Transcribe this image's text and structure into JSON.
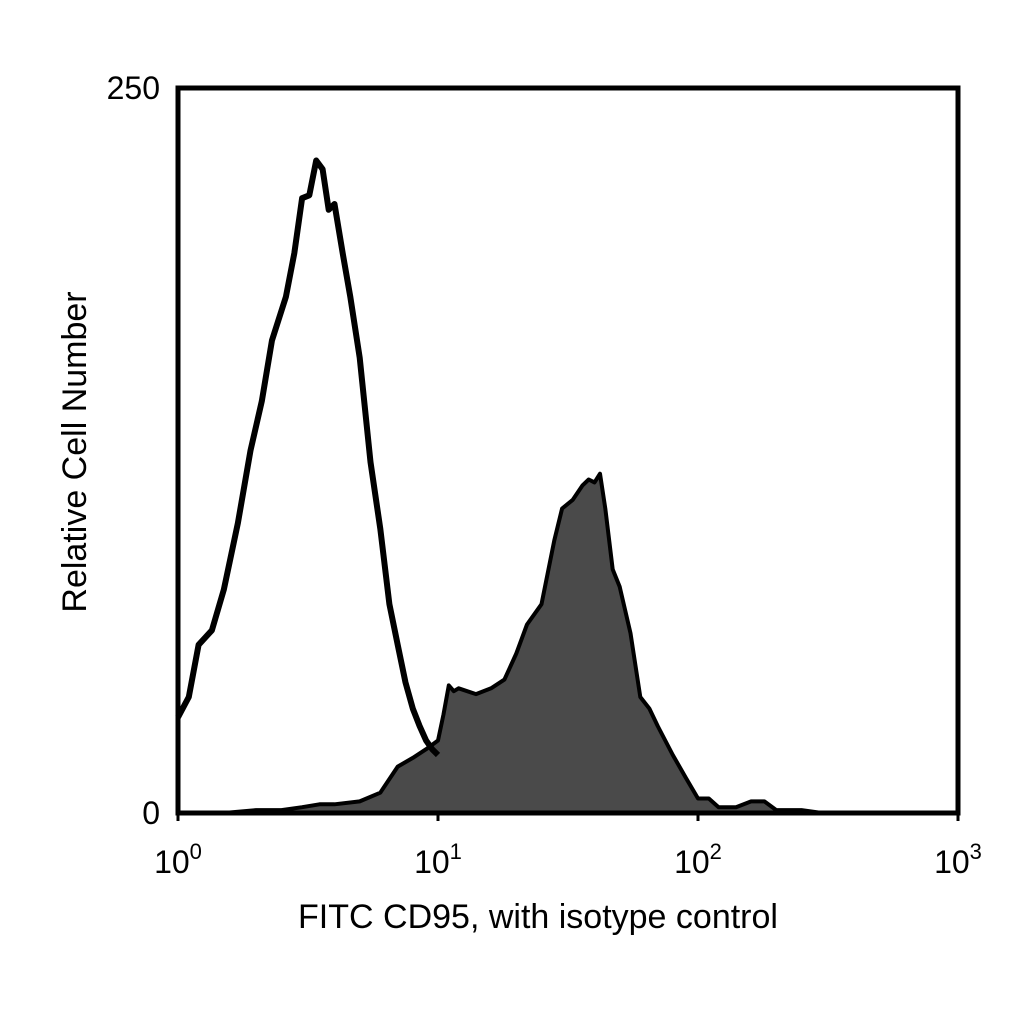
{
  "chart_data": {
    "type": "area",
    "title": "",
    "xlabel": "FITC CD95, with isotype control",
    "ylabel": "Relative Cell Number",
    "x_scale": "log",
    "xlim": [
      1,
      1000
    ],
    "ylim": [
      0,
      250
    ],
    "grid": false,
    "legend": "none",
    "x_ticks": [
      {
        "base": "10",
        "exp": "0"
      },
      {
        "base": "10",
        "exp": "1"
      },
      {
        "base": "10",
        "exp": "2"
      },
      {
        "base": "10",
        "exp": "3"
      }
    ],
    "y_ticks": [
      "0",
      "250"
    ],
    "series": [
      {
        "style": "outline",
        "color": "#000000",
        "x": [
          1.0,
          1.1,
          1.2,
          1.35,
          1.5,
          1.7,
          1.9,
          2.1,
          2.3,
          2.6,
          2.8,
          3.0,
          3.2,
          3.4,
          3.6,
          3.8,
          4.0,
          4.3,
          4.6,
          5.0,
          5.5,
          6.0,
          6.5,
          7.0,
          7.5,
          8.0,
          8.5,
          9.0,
          9.5,
          10.0
        ],
        "y": [
          33,
          40,
          58,
          63,
          77,
          100,
          125,
          142,
          163,
          178,
          193,
          212,
          213,
          225,
          222,
          208,
          210,
          193,
          178,
          157,
          121,
          98,
          72,
          58,
          45,
          36,
          30,
          25,
          22,
          20
        ]
      },
      {
        "style": "filled",
        "color": "#4a4a4a",
        "x": [
          1.0,
          1.5,
          2.0,
          2.5,
          3.0,
          3.5,
          4.0,
          5.0,
          6.0,
          7.0,
          8.0,
          9.0,
          10.0,
          10.5,
          11.0,
          11.5,
          12.0,
          14.0,
          16.0,
          18.0,
          20.0,
          22.0,
          25.0,
          28.0,
          30.0,
          33.0,
          36.0,
          38.0,
          40.0,
          42.0,
          44.0,
          47.0,
          50.0,
          55.0,
          60.0,
          65.0,
          70.0,
          80.0,
          90.0,
          100.0,
          110.0,
          120.0,
          140.0,
          160.0,
          180.0,
          200.0,
          250.0,
          300.0
        ],
        "y": [
          0,
          0,
          1,
          1,
          2,
          3,
          3,
          4,
          7,
          16,
          19,
          22,
          25,
          34,
          44,
          42,
          43,
          41,
          43,
          46,
          55,
          65,
          72,
          94,
          105,
          108,
          113,
          115,
          114,
          117,
          105,
          84,
          78,
          62,
          40,
          36,
          30,
          20,
          12,
          5,
          5,
          2,
          2,
          4,
          4,
          1,
          1,
          0
        ]
      }
    ]
  }
}
